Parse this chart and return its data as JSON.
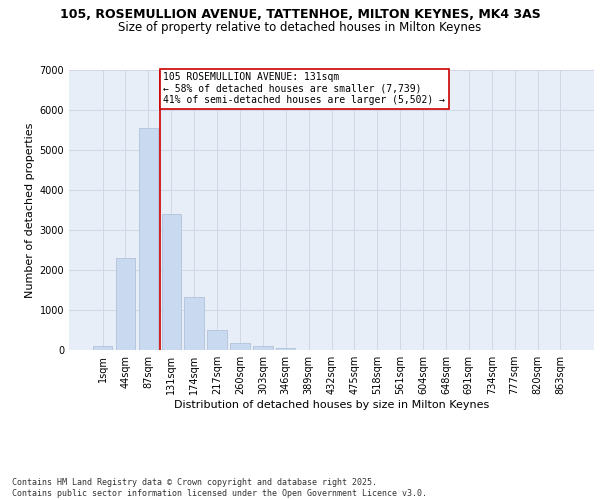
{
  "title_line1": "105, ROSEMULLION AVENUE, TATTENHOE, MILTON KEYNES, MK4 3AS",
  "title_line2": "Size of property relative to detached houses in Milton Keynes",
  "xlabel": "Distribution of detached houses by size in Milton Keynes",
  "ylabel": "Number of detached properties",
  "categories": [
    "1sqm",
    "44sqm",
    "87sqm",
    "131sqm",
    "174sqm",
    "217sqm",
    "260sqm",
    "303sqm",
    "346sqm",
    "389sqm",
    "432sqm",
    "475sqm",
    "518sqm",
    "561sqm",
    "604sqm",
    "648sqm",
    "691sqm",
    "734sqm",
    "777sqm",
    "820sqm",
    "863sqm"
  ],
  "values": [
    100,
    2300,
    5550,
    3400,
    1320,
    490,
    185,
    90,
    55,
    0,
    0,
    0,
    0,
    0,
    0,
    0,
    0,
    0,
    0,
    0,
    0
  ],
  "bar_color": "#c9d9f0",
  "bar_edge_color": "#aabcd5",
  "vline_x_idx": 3,
  "vline_color": "#cc0000",
  "annotation_text": "105 ROSEMULLION AVENUE: 131sqm\n← 58% of detached houses are smaller (7,739)\n41% of semi-detached houses are larger (5,502) →",
  "annotation_box_color": "#cc0000",
  "ylim": [
    0,
    7000
  ],
  "yticks": [
    0,
    1000,
    2000,
    3000,
    4000,
    5000,
    6000,
    7000
  ],
  "grid_color": "#d0d8e8",
  "bg_color": "#e8eef8",
  "footnote": "Contains HM Land Registry data © Crown copyright and database right 2025.\nContains public sector information licensed under the Open Government Licence v3.0.",
  "title_fontsize": 9,
  "subtitle_fontsize": 8.5,
  "xlabel_fontsize": 8,
  "ylabel_fontsize": 8,
  "tick_fontsize": 7,
  "annotation_fontsize": 7,
  "footnote_fontsize": 6
}
